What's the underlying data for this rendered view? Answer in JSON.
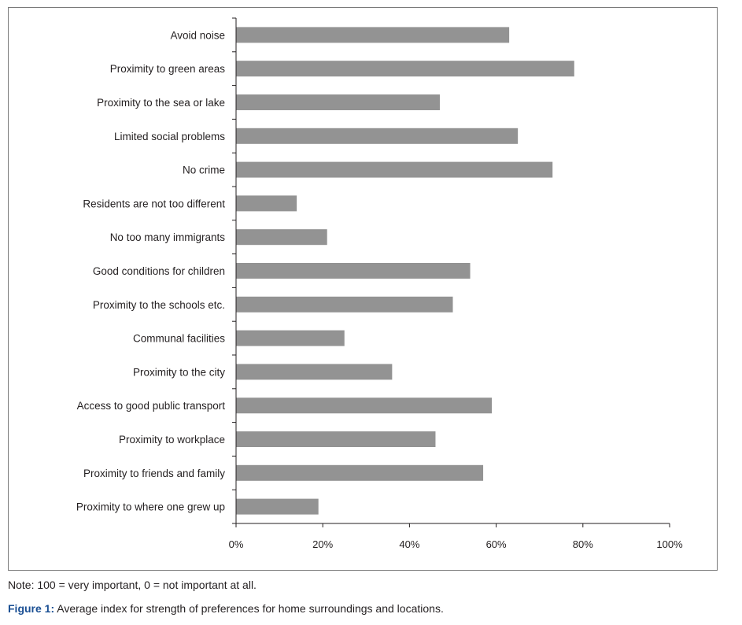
{
  "chart_data": {
    "type": "bar",
    "orientation": "horizontal",
    "categories": [
      "Avoid noise",
      "Proximity to green areas",
      "Proximity to the sea or lake",
      "Limited social problems",
      "No crime",
      "Residents are not too different",
      "No too many immigrants",
      "Good conditions for children",
      "Proximity to the schools etc.",
      "Communal facilities",
      "Proximity to the city",
      "Access to good public transport",
      "Proximity to workplace",
      "Proximity to friends and family",
      "Proximity to where one grew up"
    ],
    "values": [
      63,
      78,
      47,
      65,
      73,
      14,
      21,
      54,
      50,
      25,
      36,
      59,
      46,
      57,
      19
    ],
    "xlim": [
      0,
      100
    ],
    "xticks": [
      "0%",
      "20%",
      "40%",
      "60%",
      "80%",
      "100%"
    ],
    "bar_color": "#939393",
    "grid": false
  },
  "note": "Note: 100 = very important, 0 = not important at all.",
  "caption": {
    "label": "Figure 1:",
    "text": " Average index for strength of preferences for home surroundings and locations."
  }
}
